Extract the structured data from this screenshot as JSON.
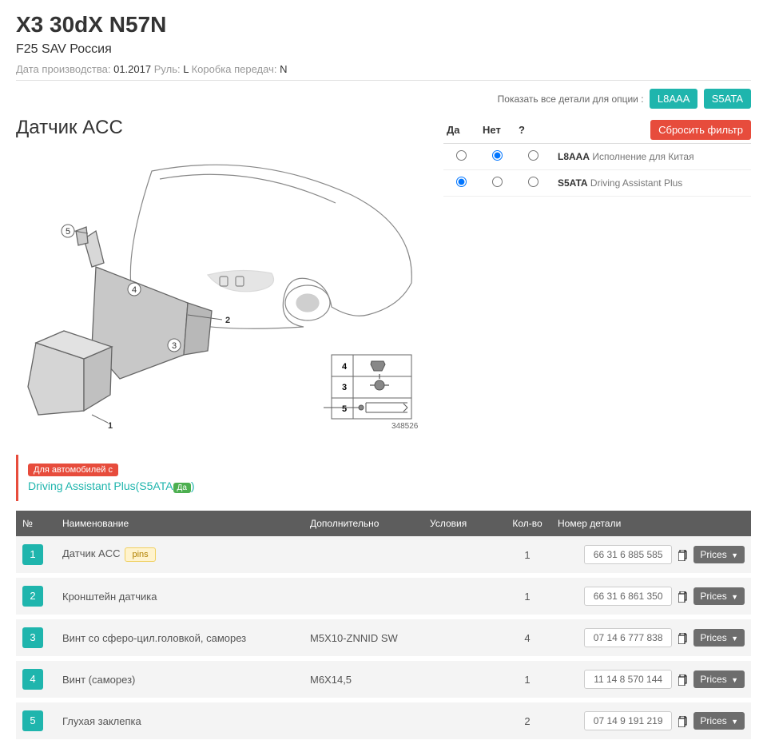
{
  "header": {
    "title": "X3 30dX N57N",
    "subtitle": "F25 SAV Россия",
    "meta_prod_label": "Дата производства:",
    "meta_prod_value": "01.2017",
    "meta_wheel_label": "Руль:",
    "meta_wheel_value": "L",
    "meta_gear_label": "Коробка передач:",
    "meta_gear_value": "N"
  },
  "options": {
    "label": "Показать все детали для опции :",
    "btn1": "L8AAA",
    "btn2": "S5ATA"
  },
  "diagram": {
    "title": "Датчик ACC",
    "drawing_id": "348526"
  },
  "filter": {
    "col_yes": "Да",
    "col_no": "Нет",
    "col_q": "?",
    "reset": "Сбросить фильтр",
    "rows": [
      {
        "code": "L8AAA",
        "desc": "Исполнение для Китая",
        "sel": 1
      },
      {
        "code": "S5ATA",
        "desc": "Driving Assistant Plus",
        "sel": 0
      }
    ]
  },
  "note": {
    "badge": "Для автомобилей с",
    "text": "Driving Assistant Plus(S5ATA",
    "yes": "Да",
    "close": ")"
  },
  "table": {
    "headers": {
      "num": "№",
      "name": "Наименование",
      "extra": "Дополнительно",
      "cond": "Условия",
      "qty": "Кол-во",
      "part": "Номер детали"
    },
    "prices_label": "Prices",
    "pins_label": "pins",
    "rows": [
      {
        "num": "1",
        "name": "Датчик ACC",
        "pins": true,
        "extra": "",
        "qty": "1",
        "part": "66 31 6 885 585"
      },
      {
        "num": "2",
        "name": "Кронштейн датчика",
        "pins": false,
        "extra": "",
        "qty": "1",
        "part": "66 31 6 861 350"
      },
      {
        "num": "3",
        "name": "Винт со сферо-цил.головкой, саморез",
        "pins": false,
        "extra": "M5X10-ZNNID SW",
        "qty": "4",
        "part": "07 14 6 777 838"
      },
      {
        "num": "4",
        "name": "Винт (саморез)",
        "pins": false,
        "extra": "M6X14,5",
        "qty": "1",
        "part": "11 14 8 570 144"
      },
      {
        "num": "5",
        "name": "Глухая заклепка",
        "pins": false,
        "extra": "",
        "qty": "2",
        "part": "07 14 9 191 219"
      }
    ]
  },
  "colors": {
    "teal": "#1fb5ad",
    "red": "#e74c3c",
    "header_gray": "#5d5d5d",
    "row_gray": "#f4f4f4"
  }
}
